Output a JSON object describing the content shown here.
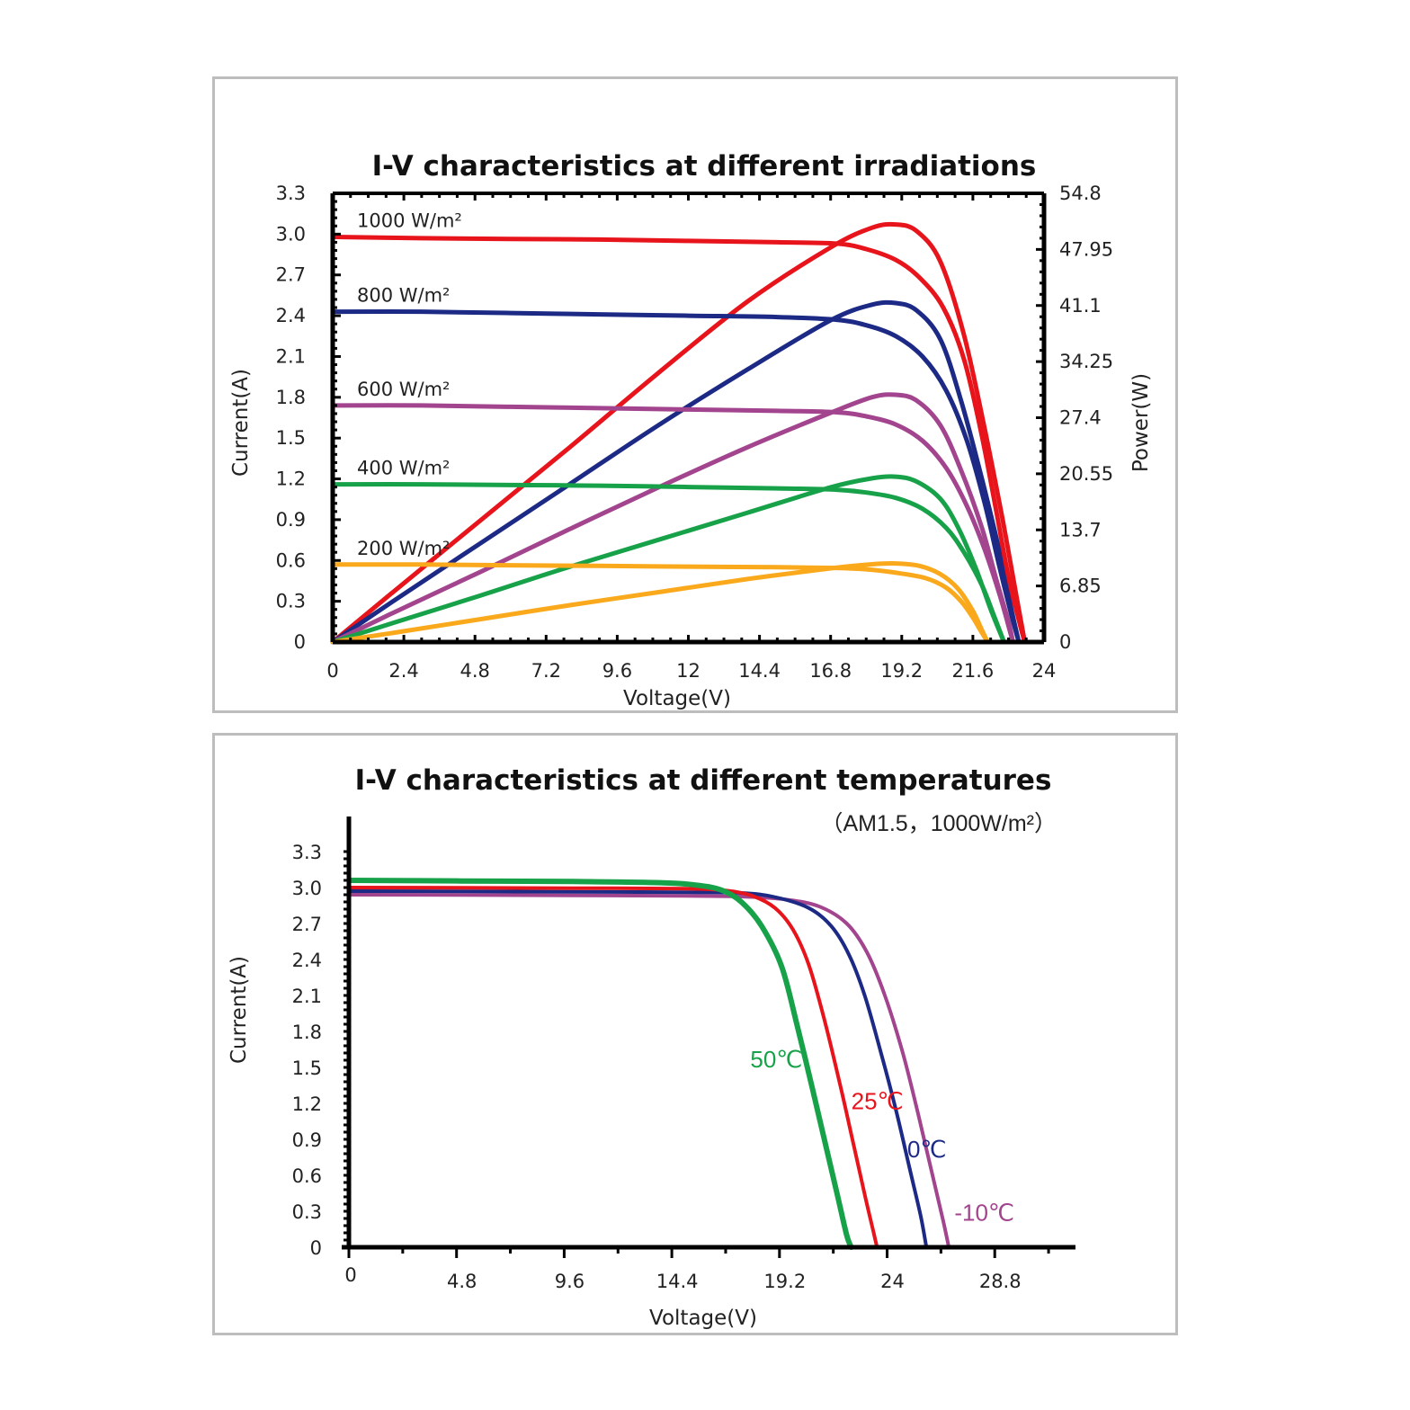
{
  "chart_data": [
    {
      "type": "line",
      "title": "I-V characteristics at different irradiations",
      "xlabel": "Voltage(V)",
      "ylabel": "Current(A)",
      "y2label": "Power(W)",
      "xlim": [
        0,
        24
      ],
      "ylim": [
        0,
        3.3
      ],
      "y2lim": [
        0,
        54.8
      ],
      "x_ticks": [
        "0",
        "2.4",
        "4.8",
        "7.2",
        "9.6",
        "12",
        "14.4",
        "16.8",
        "19.2",
        "21.6",
        "24"
      ],
      "y_ticks": [
        "0",
        "0.3",
        "0.6",
        "0.9",
        "1.2",
        "1.5",
        "1.8",
        "2.1",
        "2.4",
        "2.7",
        "3.0",
        "3.3"
      ],
      "y2_ticks": [
        "0",
        "6.85",
        "13.7",
        "20.55",
        "27.4",
        "34.25",
        "41.1",
        "47.95",
        "54.8"
      ],
      "grid": false,
      "series": [
        {
          "name": "1000 W/m²",
          "color": "#e8141c",
          "iv": [
            [
              0,
              2.98
            ],
            [
              3,
              2.97
            ],
            [
              6,
              2.965
            ],
            [
              9,
              2.96
            ],
            [
              12,
              2.95
            ],
            [
              15,
              2.94
            ],
            [
              17,
              2.93
            ],
            [
              18,
              2.89
            ],
            [
              19,
              2.81
            ],
            [
              19.8,
              2.68
            ],
            [
              20.6,
              2.46
            ],
            [
              21.3,
              2.08
            ],
            [
              21.9,
              1.52
            ],
            [
              22.4,
              0.95
            ],
            [
              22.8,
              0.48
            ],
            [
              23.2,
              0.12
            ],
            [
              23.35,
              0
            ]
          ],
          "pv": [
            [
              0,
              0
            ],
            [
              2,
              6.0
            ],
            [
              5,
              14.9
            ],
            [
              8,
              23.8
            ],
            [
              11,
              32.9
            ],
            [
              14,
              41.6
            ],
            [
              16.8,
              48.2
            ],
            [
              18.2,
              50.6
            ],
            [
              19,
              51.0
            ],
            [
              19.7,
              50.2
            ],
            [
              20.5,
              46.5
            ],
            [
              21.3,
              37.5
            ],
            [
              22,
              26.0
            ],
            [
              22.6,
              15.0
            ],
            [
              23.1,
              5.0
            ],
            [
              23.35,
              0
            ]
          ]
        },
        {
          "name": "800 W/m²",
          "color": "#1c2a86",
          "iv": [
            [
              0,
              2.43
            ],
            [
              3,
              2.43
            ],
            [
              6,
              2.42
            ],
            [
              9,
              2.41
            ],
            [
              12,
              2.4
            ],
            [
              15,
              2.39
            ],
            [
              17,
              2.37
            ],
            [
              18,
              2.33
            ],
            [
              19,
              2.25
            ],
            [
              19.9,
              2.1
            ],
            [
              20.7,
              1.85
            ],
            [
              21.4,
              1.48
            ],
            [
              22,
              1.02
            ],
            [
              22.5,
              0.55
            ],
            [
              22.9,
              0.2
            ],
            [
              23.15,
              0
            ]
          ],
          "pv": [
            [
              0,
              0
            ],
            [
              2,
              4.9
            ],
            [
              5,
              12.1
            ],
            [
              8,
              19.3
            ],
            [
              11,
              26.5
            ],
            [
              14,
              33.3
            ],
            [
              16.8,
              39.3
            ],
            [
              18.2,
              41.2
            ],
            [
              19,
              41.4
            ],
            [
              19.7,
              40.5
            ],
            [
              20.5,
              37.0
            ],
            [
              21.2,
              29.5
            ],
            [
              21.9,
              20.0
            ],
            [
              22.5,
              11.0
            ],
            [
              22.9,
              4.0
            ],
            [
              23.15,
              0
            ]
          ]
        },
        {
          "name": "600 W/m²",
          "color": "#a2448e",
          "iv": [
            [
              0,
              1.74
            ],
            [
              3,
              1.74
            ],
            [
              6,
              1.73
            ],
            [
              9,
              1.72
            ],
            [
              12,
              1.71
            ],
            [
              15,
              1.7
            ],
            [
              17,
              1.69
            ],
            [
              18,
              1.66
            ],
            [
              19,
              1.6
            ],
            [
              19.9,
              1.48
            ],
            [
              20.7,
              1.28
            ],
            [
              21.4,
              1.0
            ],
            [
              22,
              0.68
            ],
            [
              22.5,
              0.35
            ],
            [
              22.8,
              0.12
            ],
            [
              22.95,
              0
            ]
          ],
          "pv": [
            [
              0,
              0
            ],
            [
              2,
              3.5
            ],
            [
              5,
              8.6
            ],
            [
              8,
              13.8
            ],
            [
              11,
              18.9
            ],
            [
              14,
              23.8
            ],
            [
              16.8,
              28.0
            ],
            [
              18.2,
              29.9
            ],
            [
              19,
              30.2
            ],
            [
              19.7,
              29.5
            ],
            [
              20.5,
              26.5
            ],
            [
              21.2,
              21.0
            ],
            [
              21.9,
              14.0
            ],
            [
              22.4,
              7.5
            ],
            [
              22.8,
              2.5
            ],
            [
              22.95,
              0
            ]
          ]
        },
        {
          "name": "400 W/m²",
          "color": "#17a24a",
          "iv": [
            [
              0,
              1.16
            ],
            [
              3,
              1.16
            ],
            [
              6,
              1.155
            ],
            [
              9,
              1.15
            ],
            [
              12,
              1.14
            ],
            [
              15,
              1.13
            ],
            [
              17,
              1.12
            ],
            [
              18,
              1.1
            ],
            [
              19,
              1.06
            ],
            [
              19.9,
              0.98
            ],
            [
              20.7,
              0.84
            ],
            [
              21.3,
              0.66
            ],
            [
              21.9,
              0.42
            ],
            [
              22.3,
              0.2
            ],
            [
              22.65,
              0
            ]
          ],
          "pv": [
            [
              0,
              0
            ],
            [
              2,
              2.3
            ],
            [
              5,
              5.7
            ],
            [
              8,
              9.2
            ],
            [
              11,
              12.5
            ],
            [
              14,
              15.8
            ],
            [
              16.8,
              18.9
            ],
            [
              18.2,
              20.0
            ],
            [
              19,
              20.2
            ],
            [
              19.7,
              19.6
            ],
            [
              20.5,
              17.5
            ],
            [
              21.1,
              14.0
            ],
            [
              21.7,
              9.0
            ],
            [
              22.2,
              4.0
            ],
            [
              22.65,
              0
            ]
          ]
        },
        {
          "name": "200 W/m²",
          "color": "#f9a91b",
          "iv": [
            [
              0,
              0.57
            ],
            [
              3,
              0.57
            ],
            [
              6,
              0.565
            ],
            [
              9,
              0.56
            ],
            [
              12,
              0.555
            ],
            [
              15,
              0.55
            ],
            [
              17,
              0.545
            ],
            [
              18,
              0.535
            ],
            [
              19,
              0.51
            ],
            [
              20,
              0.47
            ],
            [
              20.7,
              0.4
            ],
            [
              21.2,
              0.3
            ],
            [
              21.6,
              0.18
            ],
            [
              21.9,
              0.07
            ],
            [
              22.1,
              0
            ]
          ],
          "pv": [
            [
              0,
              0
            ],
            [
              2,
              1.1
            ],
            [
              5,
              2.8
            ],
            [
              8,
              4.5
            ],
            [
              11,
              6.1
            ],
            [
              14,
              7.7
            ],
            [
              16.8,
              9.0
            ],
            [
              18.2,
              9.5
            ],
            [
              19,
              9.6
            ],
            [
              19.8,
              9.3
            ],
            [
              20.5,
              8.3
            ],
            [
              21.1,
              6.5
            ],
            [
              21.6,
              3.8
            ],
            [
              21.9,
              1.5
            ],
            [
              22.1,
              0
            ]
          ]
        }
      ]
    },
    {
      "type": "line",
      "title": "I-V characteristics at different temperatures",
      "subtitle": "（AM1.5，1000W/m²）",
      "xlabel": "Voltage(V)",
      "ylabel": "Current(A)",
      "xlim": [
        0,
        32.4
      ],
      "ylim": [
        0,
        3.3
      ],
      "x_ticks": [
        "0",
        "4.8",
        "9.6",
        "14.4",
        "19.2",
        "24",
        "28.8"
      ],
      "y_ticks": [
        "0",
        "0.3",
        "0.6",
        "0.9",
        "1.2",
        "1.5",
        "1.8",
        "2.1",
        "2.4",
        "2.7",
        "3.0",
        "3.3"
      ],
      "grid": false,
      "series": [
        {
          "name": "50℃",
          "color": "#17a24a",
          "iv": [
            [
              0,
              3.06
            ],
            [
              5,
              3.055
            ],
            [
              10,
              3.05
            ],
            [
              14,
              3.04
            ],
            [
              15.5,
              3.02
            ],
            [
              16.6,
              2.98
            ],
            [
              17.5,
              2.88
            ],
            [
              18.4,
              2.68
            ],
            [
              19.3,
              2.34
            ],
            [
              20,
              1.84
            ],
            [
              20.7,
              1.3
            ],
            [
              21.3,
              0.82
            ],
            [
              21.8,
              0.42
            ],
            [
              22.2,
              0.1
            ],
            [
              22.4,
              0
            ]
          ]
        },
        {
          "name": "25℃",
          "color": "#e8141c",
          "iv": [
            [
              0,
              3.0
            ],
            [
              5,
              2.998
            ],
            [
              10,
              2.995
            ],
            [
              15,
              2.99
            ],
            [
              16.8,
              2.975
            ],
            [
              18,
              2.93
            ],
            [
              19,
              2.83
            ],
            [
              19.8,
              2.65
            ],
            [
              20.5,
              2.36
            ],
            [
              21.2,
              1.9
            ],
            [
              21.9,
              1.36
            ],
            [
              22.5,
              0.86
            ],
            [
              23,
              0.44
            ],
            [
              23.4,
              0.12
            ],
            [
              23.55,
              0
            ]
          ]
        },
        {
          "name": "0℃",
          "color": "#1c2a86",
          "iv": [
            [
              0,
              2.97
            ],
            [
              5,
              2.968
            ],
            [
              10,
              2.965
            ],
            [
              15,
              2.96
            ],
            [
              17.5,
              2.955
            ],
            [
              19,
              2.92
            ],
            [
              20.5,
              2.83
            ],
            [
              21.5,
              2.68
            ],
            [
              22.3,
              2.44
            ],
            [
              23,
              2.1
            ],
            [
              23.7,
              1.64
            ],
            [
              24.4,
              1.14
            ],
            [
              25,
              0.66
            ],
            [
              25.5,
              0.26
            ],
            [
              25.75,
              0
            ]
          ]
        },
        {
          "name": "-10℃",
          "color": "#a2448e",
          "iv": [
            [
              0,
              2.94
            ],
            [
              5,
              2.938
            ],
            [
              10,
              2.935
            ],
            [
              15,
              2.93
            ],
            [
              17.5,
              2.925
            ],
            [
              19.5,
              2.9
            ],
            [
              21,
              2.84
            ],
            [
              22.2,
              2.7
            ],
            [
              23.1,
              2.46
            ],
            [
              23.9,
              2.1
            ],
            [
              24.7,
              1.62
            ],
            [
              25.4,
              1.1
            ],
            [
              26,
              0.62
            ],
            [
              26.5,
              0.22
            ],
            [
              26.75,
              0
            ]
          ]
        }
      ]
    }
  ]
}
